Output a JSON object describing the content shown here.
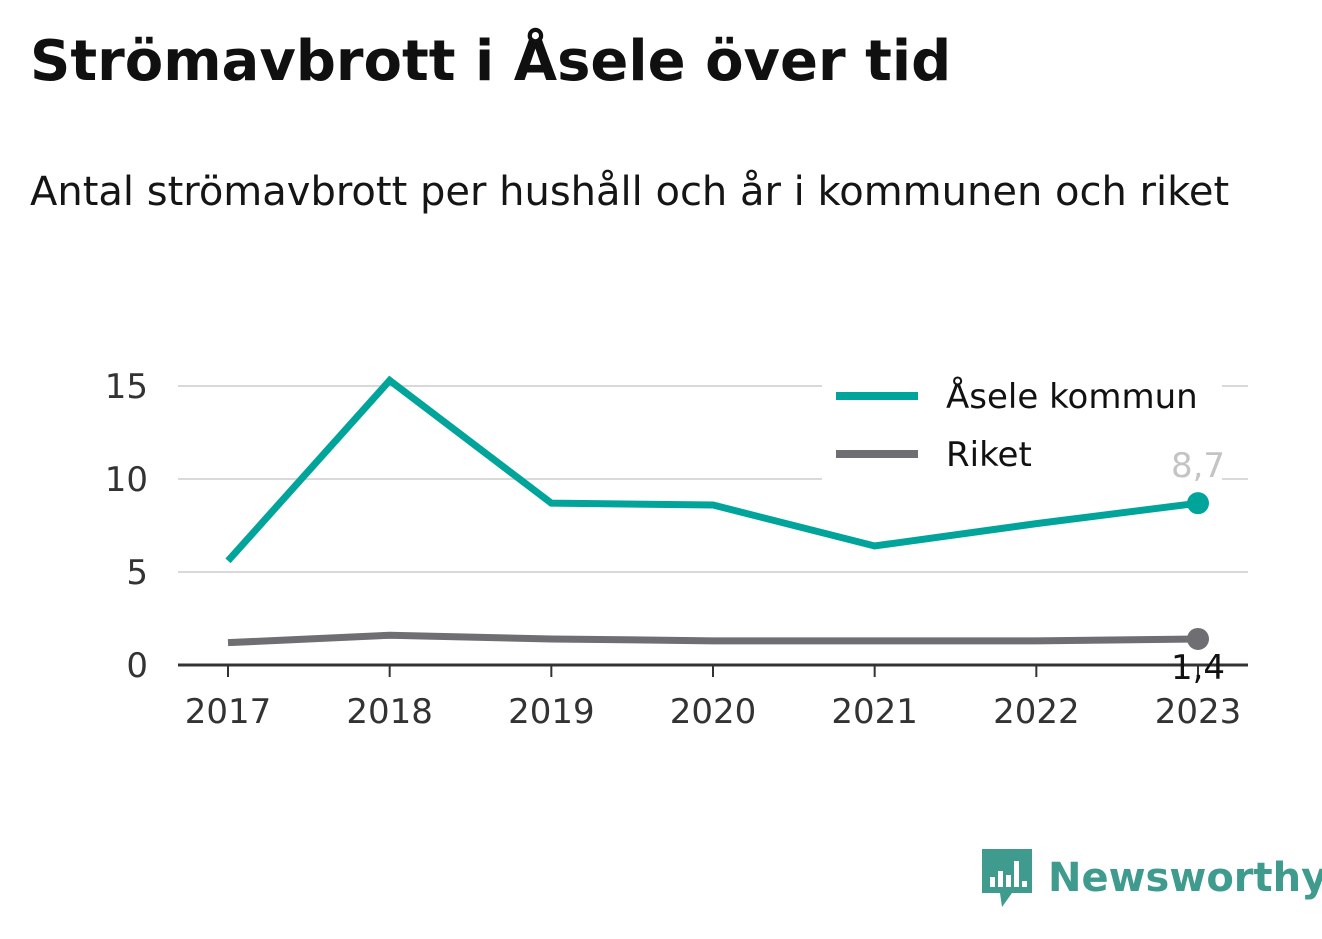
{
  "header": {
    "title": "Strömavbrott i Åsele över tid",
    "subtitle": "Antal strömavbrott per hushåll och år i kommunen och riket"
  },
  "brand": {
    "name": "Newsworthy",
    "icon": "bar-chart-speech-bubble-icon"
  },
  "colors": {
    "asele": "#00a49a",
    "riket": "#6e6e73",
    "grid": "#d9d9d9",
    "axis": "#333333",
    "brand": "#3e9b8e"
  },
  "chart_data": {
    "type": "line",
    "title": "Strömavbrott i Åsele över tid",
    "subtitle": "Antal strömavbrott per hushåll och år i kommunen och riket",
    "xlabel": "",
    "ylabel": "",
    "x": [
      "2017",
      "2018",
      "2019",
      "2020",
      "2021",
      "2022",
      "2023"
    ],
    "ylim": [
      0,
      15
    ],
    "yticks": [
      "0",
      "5",
      "10",
      "15"
    ],
    "grid": true,
    "legend": "top-right",
    "series": [
      {
        "name": "Åsele kommun",
        "values": [
          5.6,
          15.3,
          8.7,
          8.6,
          6.4,
          7.6,
          8.7
        ],
        "end_label": "8,7"
      },
      {
        "name": "Riket",
        "values": [
          1.2,
          1.6,
          1.4,
          1.3,
          1.3,
          1.3,
          1.4
        ],
        "end_label": "1,4"
      }
    ]
  }
}
